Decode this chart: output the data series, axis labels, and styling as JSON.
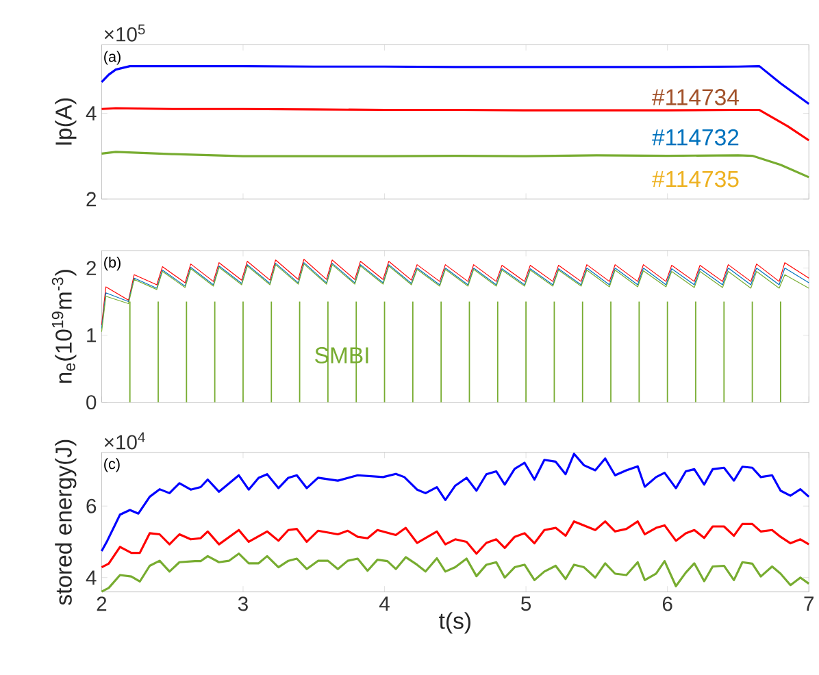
{
  "chart_data": [
    {
      "type": "line",
      "ylabel": "Ip(A)",
      "xlim": [
        2,
        7
      ],
      "ylim": [
        2,
        5.6
      ],
      "xticks": [
        2,
        3,
        4,
        5,
        6,
        7
      ],
      "yticks": [
        2,
        4
      ],
      "tick_labels": "y",
      "annotations": [
        "(a)",
        "×10$^{5}$",
        "#114734",
        "#114732",
        "#114735"
      ],
      "series": [
        {
          "color": "#0000ff",
          "x": [
            2.0,
            2.05,
            2.1,
            2.2,
            2.5,
            3,
            3.5,
            4,
            4.5,
            5,
            5.5,
            6,
            6.5,
            6.65,
            6.8,
            7.0
          ],
          "values": [
            4.73,
            4.9,
            5.02,
            5.1,
            5.1,
            5.1,
            5.09,
            5.09,
            5.08,
            5.08,
            5.08,
            5.08,
            5.09,
            5.1,
            4.7,
            4.22
          ]
        },
        {
          "color": "#ff0000",
          "x": [
            2.0,
            2.1,
            2.5,
            3,
            3.5,
            4,
            4.5,
            5,
            5.5,
            6,
            6.5,
            6.65,
            6.85,
            7.0
          ],
          "values": [
            4.1,
            4.12,
            4.1,
            4.1,
            4.09,
            4.08,
            4.08,
            4.07,
            4.07,
            4.07,
            4.08,
            4.08,
            3.7,
            3.37
          ]
        },
        {
          "color": "#77ac30",
          "x": [
            2.0,
            2.1,
            2.5,
            3,
            3.5,
            4,
            4.5,
            5,
            5.5,
            6,
            6.5,
            6.6,
            6.8,
            7.0
          ],
          "values": [
            3.06,
            3.1,
            3.05,
            3.0,
            3.0,
            3.0,
            3.01,
            3.0,
            3.02,
            3.01,
            3.02,
            3.01,
            2.8,
            2.51
          ]
        }
      ]
    },
    {
      "type": "line",
      "ylabel": "n$_{e}$(10$^{19}$m$^{-3}$)",
      "xlim": [
        2,
        7
      ],
      "ylim": [
        0,
        2.26
      ],
      "xticks": [
        2,
        3,
        4,
        5,
        6,
        7
      ],
      "yticks": [
        0,
        1,
        2
      ],
      "tick_labels": "y",
      "annotations": [
        "(b)"
      ],
      "series": [
        {
          "color": "#ff0000",
          "x": [
            2.0,
            2.03,
            2.19,
            2.23,
            2.39,
            2.43,
            2.59,
            2.63,
            2.79,
            2.83,
            2.99,
            3.03,
            3.19,
            3.23,
            3.39,
            3.43,
            3.59,
            3.63,
            3.79,
            3.83,
            3.99,
            4.03,
            4.19,
            4.23,
            4.39,
            4.43,
            4.59,
            4.63,
            4.79,
            4.83,
            4.99,
            5.03,
            5.19,
            5.23,
            5.39,
            5.43,
            5.59,
            5.63,
            5.79,
            5.83,
            5.99,
            6.03,
            6.19,
            6.23,
            6.39,
            6.43,
            6.59,
            6.63,
            6.79,
            6.83,
            7.0
          ],
          "values": [
            1.15,
            1.72,
            1.52,
            1.9,
            1.75,
            2.02,
            1.78,
            2.06,
            1.8,
            2.08,
            1.82,
            2.1,
            1.82,
            2.12,
            1.83,
            2.13,
            1.83,
            2.12,
            1.83,
            2.1,
            1.83,
            2.1,
            1.82,
            2.05,
            1.8,
            2.05,
            1.8,
            2.05,
            1.8,
            2.04,
            1.8,
            2.04,
            1.8,
            2.04,
            1.8,
            2.05,
            1.8,
            2.05,
            1.8,
            2.05,
            1.8,
            2.04,
            1.8,
            2.04,
            1.8,
            2.05,
            1.8,
            2.06,
            1.8,
            2.08,
            1.85
          ]
        },
        {
          "color": "#0072bd",
          "x": [
            2.0,
            2.03,
            2.19,
            2.23,
            2.39,
            2.43,
            2.59,
            2.63,
            2.79,
            2.83,
            2.99,
            3.03,
            3.19,
            3.23,
            3.39,
            3.43,
            3.59,
            3.63,
            3.79,
            3.83,
            3.99,
            4.03,
            4.19,
            4.23,
            4.39,
            4.43,
            4.59,
            4.63,
            4.79,
            4.83,
            4.99,
            5.03,
            5.19,
            5.23,
            5.39,
            5.43,
            5.59,
            5.63,
            5.79,
            5.83,
            5.99,
            6.03,
            6.19,
            6.23,
            6.39,
            6.43,
            6.59,
            6.63,
            6.79,
            6.83,
            7.0
          ],
          "values": [
            1.1,
            1.63,
            1.5,
            1.85,
            1.7,
            1.97,
            1.73,
            2.01,
            1.75,
            2.03,
            1.77,
            2.05,
            1.77,
            2.07,
            1.78,
            2.08,
            1.78,
            2.07,
            1.78,
            2.05,
            1.78,
            2.05,
            1.77,
            2.0,
            1.75,
            2.0,
            1.75,
            2.0,
            1.75,
            1.99,
            1.75,
            1.99,
            1.75,
            1.99,
            1.75,
            2.0,
            1.75,
            2.0,
            1.75,
            2.0,
            1.75,
            1.99,
            1.75,
            1.99,
            1.75,
            2.0,
            1.75,
            2.0,
            1.75,
            2.0,
            1.78
          ]
        },
        {
          "color": "#77ac30",
          "x": [
            2.0,
            2.03,
            2.19,
            2.23,
            2.39,
            2.43,
            2.59,
            2.63,
            2.79,
            2.83,
            2.99,
            3.03,
            3.19,
            3.23,
            3.39,
            3.43,
            3.59,
            3.63,
            3.79,
            3.83,
            3.99,
            4.03,
            4.19,
            4.23,
            4.39,
            4.43,
            4.59,
            4.63,
            4.79,
            4.83,
            4.99,
            5.03,
            5.19,
            5.23,
            5.39,
            5.43,
            5.59,
            5.63,
            5.79,
            5.83,
            5.99,
            6.03,
            6.19,
            6.23,
            6.39,
            6.43,
            6.59,
            6.63,
            6.79,
            6.83,
            7.0
          ],
          "values": [
            1.05,
            1.58,
            1.47,
            1.83,
            1.68,
            1.95,
            1.71,
            1.99,
            1.73,
            2.01,
            1.75,
            2.03,
            1.75,
            2.05,
            1.76,
            2.06,
            1.76,
            2.05,
            1.76,
            2.03,
            1.76,
            2.03,
            1.75,
            1.98,
            1.73,
            1.98,
            1.73,
            1.98,
            1.73,
            1.97,
            1.73,
            1.97,
            1.73,
            1.97,
            1.73,
            1.97,
            1.72,
            1.97,
            1.72,
            1.96,
            1.72,
            1.95,
            1.71,
            1.95,
            1.71,
            1.95,
            1.7,
            1.95,
            1.7,
            1.9,
            1.7
          ]
        },
        {
          "type": "bar",
          "name": "SMBI",
          "color": "#77ac30",
          "x": [
            2.2,
            2.4,
            2.6,
            2.8,
            3.0,
            3.2,
            3.4,
            3.6,
            3.8,
            4.0,
            4.2,
            4.4,
            4.6,
            4.8,
            5.0,
            5.2,
            5.4,
            5.6,
            5.8,
            6.0,
            6.2,
            6.4,
            6.6,
            6.8
          ],
          "values": [
            1.5,
            1.5,
            1.5,
            1.5,
            1.5,
            1.5,
            1.5,
            1.5,
            1.5,
            1.5,
            1.5,
            1.5,
            1.5,
            1.5,
            1.5,
            1.5,
            1.5,
            1.5,
            1.5,
            1.5,
            1.5,
            1.5,
            1.5,
            1.5
          ]
        }
      ]
    },
    {
      "type": "line",
      "xlabel": "t(s)",
      "ylabel": "stored energy(J)",
      "xlim": [
        2,
        7
      ],
      "ylim": [
        3.6,
        7.5
      ],
      "xticks": [
        2,
        3,
        4,
        5,
        6,
        7
      ],
      "yticks": [
        4,
        6
      ],
      "annotations": [
        "(c)",
        "×10$^{4}$"
      ],
      "series": [
        {
          "color": "#0000ff",
          "x": [
            2.0,
            2.04,
            2.13,
            2.2,
            2.26,
            2.34,
            2.41,
            2.48,
            2.55,
            2.63,
            2.7,
            2.75,
            2.83,
            2.97,
            3.04,
            3.11,
            3.17,
            3.25,
            3.32,
            3.38,
            3.45,
            3.53,
            3.67,
            3.81,
            3.99,
            4.08,
            4.14,
            4.23,
            4.29,
            4.37,
            4.43,
            4.5,
            4.58,
            4.65,
            4.72,
            4.79,
            4.85,
            4.92,
            4.99,
            5.06,
            5.13,
            5.21,
            5.28,
            5.34,
            5.41,
            5.49,
            5.56,
            5.63,
            5.71,
            5.79,
            5.84,
            5.92,
            5.98,
            6.06,
            6.13,
            6.19,
            6.26,
            6.32,
            6.4,
            6.47,
            6.53,
            6.6,
            6.66,
            6.74,
            6.8,
            6.87,
            6.94,
            7.0
          ],
          "values": [
            4.74,
            5.03,
            5.76,
            5.89,
            5.79,
            6.26,
            6.47,
            6.36,
            6.64,
            6.46,
            6.53,
            6.74,
            6.4,
            6.86,
            6.46,
            6.79,
            6.89,
            6.5,
            6.79,
            6.86,
            6.5,
            6.79,
            6.71,
            6.86,
            6.81,
            6.9,
            6.81,
            6.46,
            6.36,
            6.53,
            6.17,
            6.57,
            6.79,
            6.43,
            6.89,
            6.97,
            6.6,
            7.04,
            7.21,
            6.74,
            7.29,
            7.24,
            6.89,
            7.46,
            7.14,
            7.0,
            7.33,
            6.86,
            7.0,
            7.11,
            6.54,
            6.81,
            6.93,
            6.5,
            6.97,
            7.03,
            6.6,
            7.03,
            7.07,
            6.71,
            7.1,
            7.07,
            6.81,
            6.86,
            6.43,
            6.29,
            6.47,
            6.26
          ]
        },
        {
          "color": "#ff0000",
          "x": [
            2.0,
            2.05,
            2.13,
            2.21,
            2.27,
            2.34,
            2.41,
            2.48,
            2.55,
            2.63,
            2.7,
            2.75,
            2.83,
            2.97,
            3.04,
            3.17,
            3.25,
            3.32,
            3.38,
            3.45,
            3.53,
            3.67,
            3.74,
            3.81,
            3.88,
            3.95,
            4.08,
            4.15,
            4.23,
            4.37,
            4.43,
            4.5,
            4.58,
            4.65,
            4.72,
            4.79,
            4.85,
            4.92,
            4.99,
            5.06,
            5.13,
            5.21,
            5.28,
            5.34,
            5.49,
            5.56,
            5.63,
            5.71,
            5.79,
            5.84,
            5.92,
            5.98,
            6.06,
            6.13,
            6.19,
            6.26,
            6.32,
            6.4,
            6.47,
            6.53,
            6.6,
            6.66,
            6.74,
            6.8,
            6.87,
            6.94,
            7.0
          ],
          "values": [
            4.29,
            4.39,
            4.86,
            4.69,
            4.69,
            5.24,
            5.21,
            4.93,
            5.21,
            5.07,
            5.1,
            5.29,
            4.93,
            5.33,
            5.0,
            5.29,
            5.03,
            5.33,
            5.36,
            5.0,
            5.31,
            5.21,
            5.31,
            5.14,
            5.1,
            5.33,
            5.19,
            5.39,
            4.97,
            5.29,
            4.93,
            5.07,
            5.0,
            4.67,
            4.97,
            5.07,
            4.83,
            5.14,
            5.24,
            4.96,
            5.33,
            5.39,
            5.17,
            5.57,
            5.33,
            5.57,
            5.29,
            5.36,
            5.57,
            5.21,
            5.39,
            5.46,
            5.03,
            5.24,
            5.33,
            5.11,
            5.43,
            5.43,
            5.17,
            5.5,
            5.5,
            5.29,
            5.33,
            5.14,
            4.96,
            5.07,
            4.93
          ]
        },
        {
          "color": "#77ac30",
          "x": [
            2.0,
            2.05,
            2.13,
            2.21,
            2.27,
            2.34,
            2.41,
            2.48,
            2.55,
            2.66,
            2.7,
            2.75,
            2.83,
            2.9,
            2.97,
            3.04,
            3.11,
            3.17,
            3.25,
            3.32,
            3.38,
            3.45,
            3.53,
            3.6,
            3.67,
            3.74,
            3.81,
            3.88,
            3.95,
            4.02,
            4.08,
            4.15,
            4.23,
            4.29,
            4.37,
            4.43,
            4.5,
            4.58,
            4.65,
            4.72,
            4.79,
            4.85,
            4.92,
            4.99,
            5.06,
            5.13,
            5.21,
            5.28,
            5.34,
            5.41,
            5.49,
            5.56,
            5.63,
            5.71,
            5.79,
            5.84,
            5.92,
            5.98,
            6.06,
            6.13,
            6.19,
            6.26,
            6.32,
            6.4,
            6.47,
            6.53,
            6.6,
            6.66,
            6.74,
            6.8,
            6.87,
            6.94,
            7.0
          ],
          "values": [
            3.61,
            3.71,
            4.07,
            4.03,
            3.89,
            4.33,
            4.47,
            4.17,
            4.43,
            4.46,
            4.46,
            4.6,
            4.43,
            4.47,
            4.67,
            4.4,
            4.4,
            4.6,
            4.29,
            4.47,
            4.53,
            4.24,
            4.47,
            4.47,
            4.24,
            4.47,
            4.53,
            4.19,
            4.5,
            4.46,
            4.24,
            4.57,
            4.36,
            4.17,
            4.54,
            4.17,
            4.29,
            4.53,
            4.04,
            4.36,
            4.43,
            4.0,
            4.29,
            4.36,
            3.93,
            4.17,
            4.33,
            3.96,
            4.36,
            4.29,
            4.0,
            4.4,
            4.11,
            4.07,
            4.43,
            3.93,
            4.11,
            4.46,
            3.76,
            4.14,
            4.4,
            3.9,
            4.31,
            4.33,
            3.93,
            4.43,
            4.39,
            4.03,
            4.31,
            4.11,
            3.79,
            4.0,
            3.83
          ]
        }
      ]
    }
  ]
}
